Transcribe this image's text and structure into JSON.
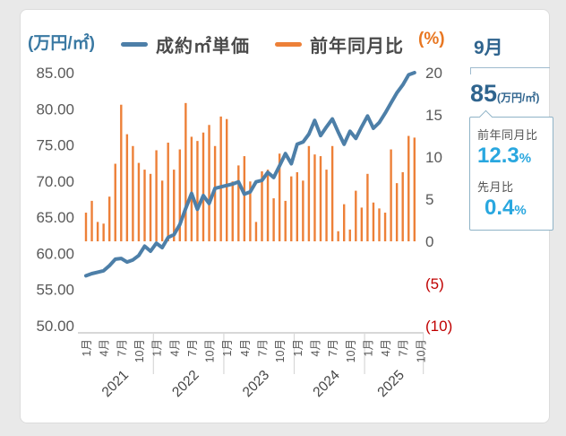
{
  "header": {
    "left_axis_unit": "(万円/㎡)",
    "right_axis_unit": "(%)"
  },
  "panel": {
    "month_label": "9月",
    "price_value": "85",
    "price_unit": "(万円/㎡)",
    "yoy_label": "前年同月比",
    "yoy_value": "12.3",
    "yoy_unit": "%",
    "mom_label": "先月比",
    "mom_value": "0.4",
    "mom_unit": "%",
    "title_color": "#2F648E",
    "accent_color": "#29A7DF"
  },
  "chart_data": {
    "type": "line+bar",
    "x": [
      "2021-01",
      "2021-02",
      "2021-03",
      "2021-04",
      "2021-05",
      "2021-06",
      "2021-07",
      "2021-08",
      "2021-09",
      "2021-10",
      "2021-11",
      "2021-12",
      "2022-01",
      "2022-02",
      "2022-03",
      "2022-04",
      "2022-05",
      "2022-06",
      "2022-07",
      "2022-08",
      "2022-09",
      "2022-10",
      "2022-11",
      "2022-12",
      "2023-01",
      "2023-02",
      "2023-03",
      "2023-04",
      "2023-05",
      "2023-06",
      "2023-07",
      "2023-08",
      "2023-09",
      "2023-10",
      "2023-11",
      "2023-12",
      "2024-01",
      "2024-02",
      "2024-03",
      "2024-04",
      "2024-05",
      "2024-06",
      "2024-07",
      "2024-08",
      "2024-09",
      "2024-10",
      "2024-11",
      "2024-12",
      "2025-01",
      "2025-02",
      "2025-03",
      "2025-04",
      "2025-05",
      "2025-06",
      "2025-07",
      "2025-08",
      "2025-09"
    ],
    "series": [
      {
        "name": "成約㎡単価",
        "type": "line",
        "axis": "left",
        "unit": "万円/㎡",
        "color": "#4D7FA8",
        "values": [
          56.9,
          57.2,
          57.4,
          57.6,
          58.3,
          59.2,
          59.3,
          58.8,
          59.1,
          59.7,
          61.0,
          60.3,
          61.4,
          60.8,
          62.2,
          62.6,
          64.0,
          66.2,
          68.3,
          66.1,
          68.0,
          66.9,
          69.0,
          69.2,
          69.4,
          69.6,
          69.9,
          68.2,
          68.5,
          69.9,
          70.1,
          71.2,
          70.5,
          72.1,
          73.8,
          72.4,
          75.1,
          75.4,
          76.5,
          78.4,
          76.3,
          77.5,
          78.6,
          76.8,
          75.1,
          76.9,
          75.9,
          77.5,
          79.0,
          77.3,
          78.1,
          79.4,
          80.8,
          82.2,
          83.3,
          84.7,
          85.0
        ]
      },
      {
        "name": "前年同月比",
        "type": "bar",
        "axis": "right",
        "unit": "%",
        "color": "#ED8038",
        "values": [
          3.4,
          4.8,
          2.3,
          2.1,
          5.3,
          9.2,
          16.2,
          12.7,
          11.3,
          9.3,
          8.5,
          8.0,
          10.8,
          7.2,
          11.7,
          8.5,
          10.9,
          16.4,
          12.4,
          11.9,
          12.9,
          13.8,
          11.3,
          14.8,
          14.5,
          7.1,
          9.0,
          10.1,
          7.1,
          2.3,
          8.3,
          8.5,
          5.1,
          10.4,
          4.8,
          7.7,
          8.2,
          7.2,
          11.3,
          10.3,
          10.1,
          8.5,
          11.3,
          1.2,
          4.4,
          1.4,
          6.0,
          4.0,
          8.0,
          4.6,
          3.9,
          3.4,
          10.9,
          6.9,
          8.2,
          12.5,
          12.3
        ]
      }
    ],
    "left_axis": {
      "ticks": [
        "85.00",
        "80.00",
        "75.00",
        "70.00",
        "65.00",
        "60.00",
        "55.00",
        "50.00"
      ],
      "min": 50,
      "max": 85,
      "tick_color": "#595959"
    },
    "right_axis": {
      "ticks": [
        "20",
        "15",
        "10",
        "5",
        "0",
        "(5)",
        "(10)"
      ],
      "min": -10,
      "max": 20,
      "tick_color": "#595959",
      "negative_color": "#C00000"
    },
    "x_axis": {
      "month_ticks": [
        "1月",
        "4月",
        "7月",
        "10月"
      ],
      "years": [
        "2021",
        "2022",
        "2023",
        "2024",
        "2025"
      ],
      "tick_color": "#555555"
    },
    "grid": false,
    "legend_position": "top-center"
  }
}
